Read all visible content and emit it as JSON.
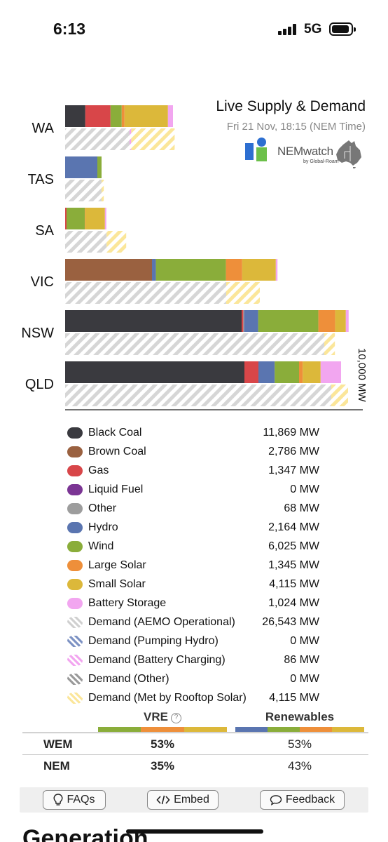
{
  "status_bar": {
    "time": "6:13",
    "network": "5G"
  },
  "chart": {
    "title": "Live Supply & Demand",
    "subtitle": "Fri 21 Nov, 18:15 (NEM Time)",
    "logo_text": "NEMwatch",
    "logo_sub": "by Global-Roam",
    "axis_label": "10,000 MW"
  },
  "colors": {
    "black_coal": "#3a3a3f",
    "brown_coal": "#9a6140",
    "gas": "#d84649",
    "liquid_fuel": "#7b3594",
    "other": "#9d9d9d",
    "hydro": "#5a75b0",
    "wind": "#8aad3a",
    "large_solar": "#ee8f3a",
    "small_solar": "#dcb83a",
    "battery_storage": "#f2a6f0",
    "demand_operational": "#d9d9d9",
    "demand_rooftop": "#fbe9a6"
  },
  "chart_data": {
    "type": "bar",
    "orientation": "horizontal",
    "stacked": true,
    "axis_scale_mw": 10000,
    "categories": [
      "WA",
      "TAS",
      "SA",
      "VIC",
      "NSW",
      "QLD"
    ],
    "supply_series": [
      {
        "name": "Black Coal",
        "values": [
          720,
          0,
          0,
          0,
          6300,
          6400
        ]
      },
      {
        "name": "Brown Coal",
        "values": [
          0,
          0,
          0,
          3100,
          0,
          0
        ]
      },
      {
        "name": "Gas",
        "values": [
          900,
          0,
          50,
          0,
          60,
          500
        ]
      },
      {
        "name": "Liquid Fuel",
        "values": [
          0,
          0,
          0,
          0,
          0,
          0
        ]
      },
      {
        "name": "Other",
        "values": [
          0,
          0,
          0,
          0,
          30,
          0
        ]
      },
      {
        "name": "Hydro",
        "values": [
          0,
          1150,
          0,
          140,
          500,
          580
        ]
      },
      {
        "name": "Wind",
        "values": [
          400,
          150,
          650,
          2500,
          2150,
          870
        ]
      },
      {
        "name": "Large Solar",
        "values": [
          100,
          0,
          20,
          580,
          600,
          130
        ]
      },
      {
        "name": "Small Solar",
        "values": [
          1550,
          0,
          700,
          1200,
          380,
          640
        ]
      },
      {
        "name": "Battery Storage",
        "values": [
          180,
          0,
          50,
          60,
          100,
          730
        ]
      }
    ],
    "demand_series": [
      {
        "name": "Demand (AEMO Operational)",
        "values": [
          2300,
          1300,
          1480,
          5750,
          9250,
          9500
        ]
      },
      {
        "name": "Demand (Battery Charging)",
        "values": [
          60,
          0,
          0,
          0,
          0,
          0
        ]
      },
      {
        "name": "Demand (Met by Rooftop Solar)",
        "values": [
          1550,
          80,
          700,
          1200,
          380,
          600
        ]
      }
    ]
  },
  "legend": [
    {
      "name": "Black Coal",
      "value": "11,869 MW",
      "color": "#3a3a3f",
      "hatched": false
    },
    {
      "name": "Brown Coal",
      "value": "2,786 MW",
      "color": "#9a6140",
      "hatched": false
    },
    {
      "name": "Gas",
      "value": "1,347 MW",
      "color": "#d84649",
      "hatched": false
    },
    {
      "name": "Liquid Fuel",
      "value": "0 MW",
      "color": "#7b3594",
      "hatched": false
    },
    {
      "name": "Other",
      "value": "68 MW",
      "color": "#9d9d9d",
      "hatched": false
    },
    {
      "name": "Hydro",
      "value": "2,164 MW",
      "color": "#5a75b0",
      "hatched": false
    },
    {
      "name": "Wind",
      "value": "6,025 MW",
      "color": "#8aad3a",
      "hatched": false
    },
    {
      "name": "Large Solar",
      "value": "1,345 MW",
      "color": "#ee8f3a",
      "hatched": false
    },
    {
      "name": "Small Solar",
      "value": "4,115 MW",
      "color": "#dcb83a",
      "hatched": false
    },
    {
      "name": "Battery Storage",
      "value": "1,024 MW",
      "color": "#f2a6f0",
      "hatched": false
    },
    {
      "name": "Demand (AEMO Operational)",
      "value": "26,543 MW",
      "color": "#d0d0d0",
      "hatched": true
    },
    {
      "name": "Demand (Pumping Hydro)",
      "value": "0 MW",
      "color": "#7e93c4",
      "hatched": true
    },
    {
      "name": "Demand (Battery Charging)",
      "value": "86 MW",
      "color": "#f2a6f0",
      "hatched": true
    },
    {
      "name": "Demand (Other)",
      "value": "0 MW",
      "color": "#9a9a9a",
      "hatched": true
    },
    {
      "name": "Demand (Met by Rooftop Solar)",
      "value": "4,115 MW",
      "color": "#fbe69a",
      "hatched": true
    }
  ],
  "summary": {
    "vre_header": "VRE",
    "help_symbol": "?",
    "renewables_header": "Renewables",
    "rows": [
      {
        "name": "WEM",
        "vre": "53%",
        "renewables": "53%"
      },
      {
        "name": "NEM",
        "vre": "35%",
        "renewables": "43%"
      }
    ]
  },
  "buttons": {
    "faqs": "FAQs",
    "embed": "Embed",
    "feedback": "Feedback"
  },
  "next_section": {
    "heading": "Generation"
  }
}
